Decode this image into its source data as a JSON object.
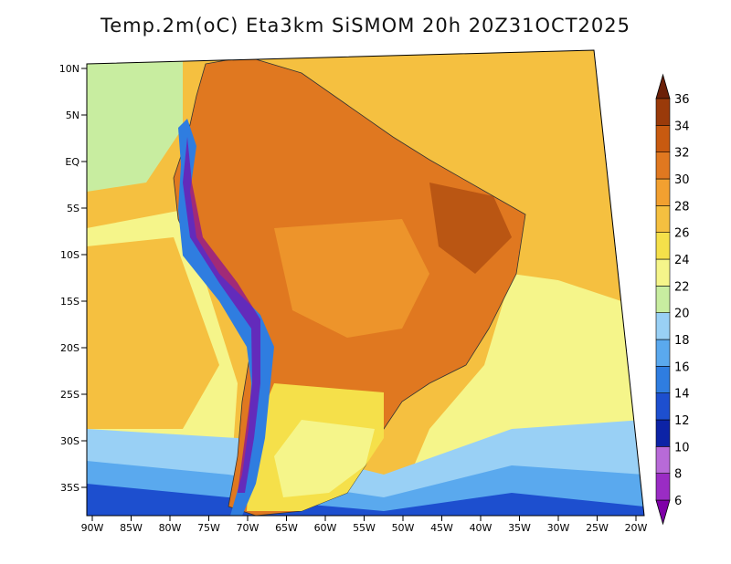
{
  "title": "Temp.2m(oC) Eta3km SiSMOM 20h 20Z31OCT2025",
  "lat_labels": [
    "10N",
    "5N",
    "EQ",
    "5S",
    "10S",
    "15S",
    "20S",
    "25S",
    "30S",
    "35S"
  ],
  "lon_labels": [
    "90W",
    "85W",
    "80W",
    "75W",
    "70W",
    "65W",
    "60W",
    "55W",
    "50W",
    "45W",
    "40W",
    "35W",
    "30W",
    "25W",
    "20W"
  ],
  "colorbar": {
    "labels": [
      "6",
      "8",
      "10",
      "12",
      "14",
      "16",
      "18",
      "20",
      "22",
      "24",
      "26",
      "28",
      "30",
      "32",
      "34",
      "36"
    ],
    "colors": [
      "#7f00a8",
      "#9a2cc4",
      "#b86ad8",
      "#0c23a6",
      "#1d4fcf",
      "#2f7de0",
      "#5aa9ee",
      "#99d0f5",
      "#c8eda0",
      "#f5f58a",
      "#f5e04a",
      "#f5c040",
      "#f2a030",
      "#e07820",
      "#c85a10",
      "#9a3a0a",
      "#6b2008"
    ]
  },
  "map": {
    "ocean_warm": "#f5c040",
    "ocean_temperate": "#f5f58a",
    "land_hot": "#e07820",
    "land_warm": "#f2a030",
    "land_hottest": "#9a3a0a",
    "andes_cold": "#1d4fcf"
  }
}
